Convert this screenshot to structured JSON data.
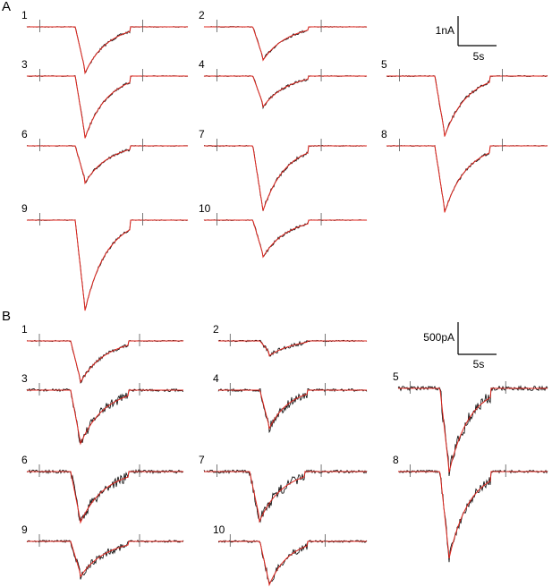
{
  "panels": [
    {
      "label": "A",
      "scale_bar": {
        "amplitude": "1nA",
        "time": "5s"
      },
      "traces": [
        {
          "label": "1"
        },
        {
          "label": "2"
        },
        {
          "label": "3"
        },
        {
          "label": "4"
        },
        {
          "label": "5"
        },
        {
          "label": "6"
        },
        {
          "label": "7"
        },
        {
          "label": "8"
        },
        {
          "label": "9"
        },
        {
          "label": "10"
        }
      ]
    },
    {
      "label": "B",
      "scale_bar": {
        "amplitude": "500pA",
        "time": "5s"
      },
      "traces": [
        {
          "label": "1"
        },
        {
          "label": "2"
        },
        {
          "label": "3"
        },
        {
          "label": "4"
        },
        {
          "label": "5"
        },
        {
          "label": "6"
        },
        {
          "label": "7"
        },
        {
          "label": "8"
        },
        {
          "label": "9"
        },
        {
          "label": "10"
        }
      ]
    }
  ]
}
